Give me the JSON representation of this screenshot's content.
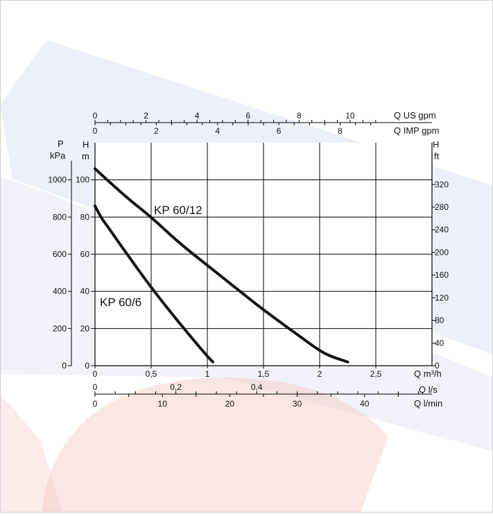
{
  "chart_data": {
    "type": "line",
    "curves": [
      {
        "name": "KP 60/12",
        "x": [
          0,
          0.25,
          0.5,
          0.75,
          1.0,
          1.25,
          1.5,
          1.75,
          2.0,
          2.1,
          2.25
        ],
        "y": [
          106,
          92,
          80,
          66,
          54,
          42,
          30,
          19,
          8,
          5,
          2
        ]
      },
      {
        "name": "KP 60/6",
        "x": [
          0,
          0.05,
          0.1,
          0.25,
          0.5,
          0.75,
          1.0,
          1.05
        ],
        "y": [
          86,
          80,
          76,
          63,
          42,
          23,
          5,
          2
        ]
      }
    ],
    "x_axes": {
      "m3h": {
        "label": "Q m³/h",
        "ticks": [
          "0",
          "0,5",
          "1",
          "1,5",
          "2",
          "2,5"
        ],
        "values": [
          0,
          0.5,
          1,
          1.5,
          2,
          2.5
        ]
      },
      "ls": {
        "label": "Q l/s",
        "ticks": [
          "0",
          "0,2",
          "0,4"
        ],
        "values": [
          0,
          0.2,
          0.4
        ]
      },
      "lmin": {
        "label": "Q l/min",
        "ticks": [
          "0",
          "10",
          "20",
          "30",
          "40"
        ],
        "values": [
          0,
          10,
          20,
          30,
          40
        ]
      },
      "usgpm": {
        "label": "Q US gpm",
        "ticks": [
          "0",
          "2",
          "4",
          "6",
          "8",
          "10"
        ],
        "values": [
          0,
          2,
          4,
          6,
          8,
          10
        ]
      },
      "impgpm": {
        "label": "Q IMP gpm",
        "ticks": [
          "0",
          "2",
          "4",
          "6",
          "8"
        ],
        "values": [
          0,
          2,
          4,
          6,
          8
        ]
      }
    },
    "y_axes": {
      "m": {
        "label_top": "H",
        "label": "m",
        "ticks": [
          "0",
          "20",
          "40",
          "60",
          "80",
          "100"
        ],
        "values": [
          0,
          20,
          40,
          60,
          80,
          100
        ]
      },
      "kpa": {
        "label_top": "P",
        "label": "kPa",
        "ticks": [
          "0",
          "200",
          "400",
          "600",
          "800",
          "1000"
        ],
        "values": [
          0,
          200,
          400,
          600,
          800,
          1000
        ]
      },
      "ft": {
        "label_top": "H",
        "label": "ft",
        "ticks": [
          "0",
          "40",
          "80",
          "120",
          "160",
          "200",
          "240",
          "280",
          "320"
        ],
        "values": [
          0,
          40,
          80,
          120,
          160,
          200,
          240,
          280,
          320
        ]
      }
    },
    "xlim_m3h": [
      0,
      3
    ],
    "ylim_m": [
      0,
      120
    ],
    "grid": true,
    "colors": {
      "curve": "#111111",
      "grid": "#000000",
      "background_shape_blue": "#dfe3f3",
      "background_shape_red": "#f4c9c2"
    }
  }
}
